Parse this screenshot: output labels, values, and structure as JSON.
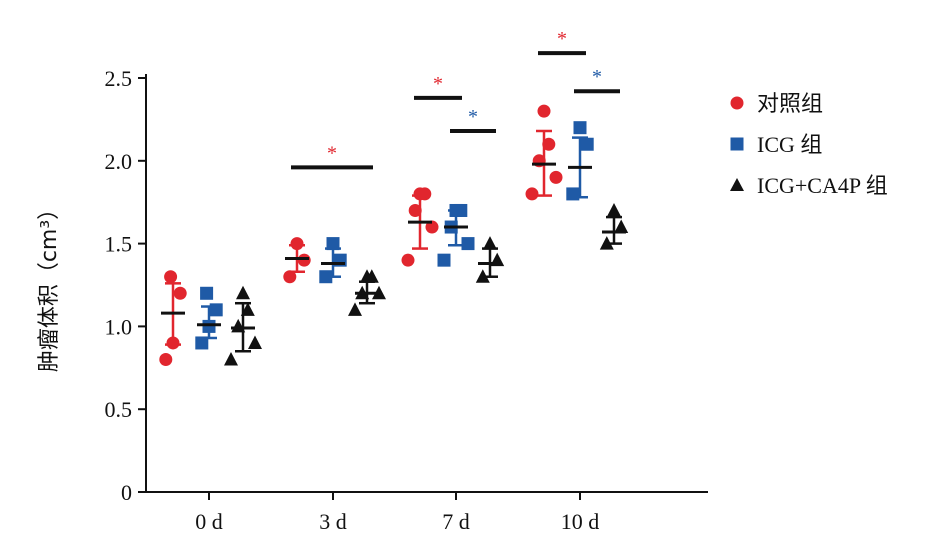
{
  "chart_data": {
    "type": "scatter",
    "ylabel": "肿瘤体积（cm³）",
    "ylim": [
      0,
      2.5
    ],
    "yticks": [
      "0",
      "0.5",
      "1.0",
      "1.5",
      "2.0",
      "2.5"
    ],
    "categories": [
      "0 d",
      "3 d",
      "7 d",
      "10 d"
    ],
    "series": [
      {
        "name": "对照组",
        "marker": "circle",
        "color": "#e1262e",
        "groups": [
          {
            "points": [
              0.8,
              0.9,
              1.2,
              1.3
            ],
            "mean": 1.08,
            "sd_low": 0.89,
            "sd_high": 1.26
          },
          {
            "points": [
              1.3,
              1.4,
              1.5
            ],
            "mean": 1.41,
            "sd_low": 1.33,
            "sd_high": 1.49
          },
          {
            "points": [
              1.4,
              1.6,
              1.7,
              1.8,
              1.8
            ],
            "mean": 1.63,
            "sd_low": 1.47,
            "sd_high": 1.79
          },
          {
            "points": [
              1.8,
              1.9,
              2.0,
              2.1,
              2.3
            ],
            "mean": 1.98,
            "sd_low": 1.79,
            "sd_high": 2.18
          }
        ]
      },
      {
        "name": "ICG 组",
        "marker": "square",
        "color": "#1f5aa6",
        "groups": [
          {
            "points": [
              0.9,
              1.0,
              1.1,
              1.2
            ],
            "mean": 1.01,
            "sd_low": 0.93,
            "sd_high": 1.12
          },
          {
            "points": [
              1.3,
              1.4,
              1.5
            ],
            "mean": 1.38,
            "sd_low": 1.3,
            "sd_high": 1.47
          },
          {
            "points": [
              1.4,
              1.5,
              1.6,
              1.7,
              1.7
            ],
            "mean": 1.6,
            "sd_low": 1.49,
            "sd_high": 1.7
          },
          {
            "points": [
              1.8,
              2.1,
              2.2
            ],
            "mean": 1.96,
            "sd_low": 1.78,
            "sd_high": 2.14
          }
        ]
      },
      {
        "name": "ICG+CA4P 组",
        "marker": "triangle",
        "color": "#111111",
        "groups": [
          {
            "points": [
              0.8,
              0.9,
              1.0,
              1.1,
              1.2
            ],
            "mean": 0.99,
            "sd_low": 0.85,
            "sd_high": 1.14
          },
          {
            "points": [
              1.1,
              1.2,
              1.2,
              1.3,
              1.3
            ],
            "mean": 1.2,
            "sd_low": 1.14,
            "sd_high": 1.27
          },
          {
            "points": [
              1.3,
              1.4,
              1.5
            ],
            "mean": 1.38,
            "sd_low": 1.3,
            "sd_high": 1.47
          },
          {
            "points": [
              1.5,
              1.6,
              1.7
            ],
            "mean": 1.57,
            "sd_low": 1.5,
            "sd_high": 1.66
          }
        ]
      }
    ],
    "annotations": [
      {
        "text": "*",
        "color": "#e1262e",
        "category": "3 d",
        "from_series": "对照组",
        "to_series": "ICG+CA4P 组",
        "y": 1.96
      },
      {
        "text": "*",
        "color": "#e1262e",
        "category": "7 d",
        "from_series": "对照组",
        "to_series": "ICG 组",
        "y": 2.38
      },
      {
        "text": "*",
        "color": "#1f5aa6",
        "category": "7 d",
        "from_series": "ICG 组",
        "to_series": "ICG+CA4P 组",
        "y": 2.18
      },
      {
        "text": "*",
        "color": "#e1262e",
        "category": "10 d",
        "from_series": "对照组",
        "to_series": "ICG 组",
        "y": 2.65
      },
      {
        "text": "*",
        "color": "#1f5aa6",
        "category": "10 d",
        "from_series": "ICG 组",
        "to_series": "ICG+CA4P 组",
        "y": 2.42
      }
    ],
    "legend_position": "top-right"
  }
}
